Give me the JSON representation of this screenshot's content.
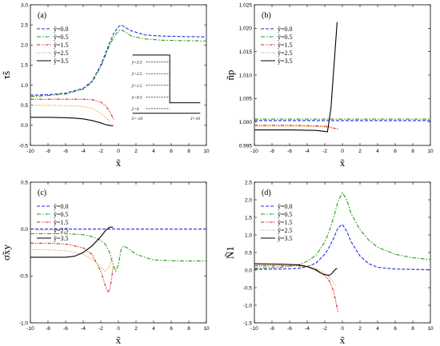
{
  "chart_data": [
    {
      "type": "line",
      "label": "(a)",
      "xlabel": "x̃",
      "ylabel": "τ̃s",
      "xlim": [
        -10,
        10
      ],
      "ylim": [
        -0.5,
        3.0
      ],
      "xticks": [
        -10,
        -8,
        -6,
        -4,
        -2,
        0,
        2,
        4,
        6,
        8,
        10
      ],
      "yticks": [
        -0.5,
        0.0,
        0.5,
        1.0,
        1.5,
        2.0,
        2.5,
        3.0
      ],
      "ytick_labels": [
        "-0.5",
        "0.0",
        "0.5",
        "1.0",
        "1.5",
        "2.0",
        "2.5",
        "3.0"
      ],
      "legend_position": "top-left",
      "series": [
        {
          "name": "ỹ=0.0",
          "color": "#1f2fd8",
          "dash": "dash",
          "x": [
            -10,
            -8,
            -6,
            -4,
            -3,
            -2,
            -1.5,
            -1,
            -0.5,
            0,
            0.3,
            0.7,
            1.5,
            3,
            5,
            7,
            10
          ],
          "y": [
            0.75,
            0.76,
            0.8,
            0.92,
            1.1,
            1.5,
            1.78,
            2.05,
            2.3,
            2.45,
            2.5,
            2.45,
            2.35,
            2.25,
            2.22,
            2.21,
            2.2
          ]
        },
        {
          "name": "ỹ=0.5",
          "color": "#2a9a1a",
          "dash": "dashdot",
          "x": [
            -10,
            -8,
            -6,
            -4,
            -3,
            -2,
            -1.5,
            -1,
            -0.5,
            0,
            0.3,
            0.7,
            1.5,
            3,
            5,
            7,
            10
          ],
          "y": [
            0.72,
            0.74,
            0.78,
            0.9,
            1.07,
            1.45,
            1.72,
            2.0,
            2.2,
            2.35,
            2.38,
            2.33,
            2.22,
            2.15,
            2.12,
            2.11,
            2.1
          ]
        },
        {
          "name": "ỹ=1.5",
          "color": "#d42020",
          "dash": "dashdotdot",
          "x": [
            -10,
            -8,
            -6,
            -4,
            -3,
            -2,
            -1.5,
            -1,
            -0.7,
            -0.5
          ],
          "y": [
            0.65,
            0.65,
            0.65,
            0.65,
            0.64,
            0.58,
            0.5,
            0.35,
            0.22,
            0.15
          ]
        },
        {
          "name": "ỹ=2.5",
          "color": "#e89a30",
          "dash": "dot",
          "x": [
            -10,
            -8,
            -6,
            -4,
            -3,
            -2,
            -1.5,
            -1
          ],
          "y": [
            0.5,
            0.5,
            0.49,
            0.47,
            0.42,
            0.3,
            0.2,
            0.1
          ]
        },
        {
          "name": "ỹ=3.5",
          "color": "#000000",
          "dash": "solid",
          "x": [
            -10,
            -8,
            -6,
            -5,
            -4,
            -3,
            -2,
            -1.5,
            -1,
            -0.6
          ],
          "y": [
            0.2,
            0.2,
            0.19,
            0.18,
            0.16,
            0.12,
            0.06,
            0.02,
            0.0,
            -0.01
          ]
        }
      ],
      "inset": {
        "labels": [
          "ỹ=3.5",
          "ỹ=2.5",
          "ỹ=1.5",
          "ỹ=0.5",
          "ỹ=0"
        ],
        "x_labels": [
          "x̃=-10",
          "x̃=10"
        ]
      }
    },
    {
      "type": "line",
      "label": "(b)",
      "xlabel": "x̃",
      "ylabel": "ñp",
      "xlim": [
        -10,
        10
      ],
      "ylim": [
        0.995,
        1.025
      ],
      "xticks": [
        -10,
        -8,
        -6,
        -4,
        -2,
        0,
        2,
        4,
        6,
        8,
        10
      ],
      "yticks": [
        0.995,
        1.0,
        1.005,
        1.01,
        1.015,
        1.02,
        1.025
      ],
      "ytick_labels": [
        "0.995",
        "1.000",
        "1.005",
        "1.010",
        "1.015",
        "1.020",
        "1.025"
      ],
      "legend_position": "top-left",
      "series": [
        {
          "name": "ỹ=0.0",
          "color": "#1f2fd8",
          "dash": "dash",
          "x": [
            -10,
            -5,
            0,
            5,
            10
          ],
          "y": [
            1.0003,
            1.0003,
            1.0003,
            1.0003,
            1.0003
          ]
        },
        {
          "name": "ỹ=0.5",
          "color": "#2a9a1a",
          "dash": "dashdot",
          "x": [
            -10,
            -5,
            0,
            5,
            10
          ],
          "y": [
            1.0006,
            1.0006,
            1.0006,
            1.0006,
            1.0006
          ]
        },
        {
          "name": "ỹ=1.5",
          "color": "#d42020",
          "dash": "dashdotdot",
          "x": [
            -10,
            -6,
            -3,
            -2,
            -1.5,
            -1,
            -0.5
          ],
          "y": [
            0.9993,
            0.9993,
            0.9992,
            0.9991,
            0.999,
            0.9987,
            0.9985
          ]
        },
        {
          "name": "ỹ=2.5",
          "color": "#e89a30",
          "dash": "dot",
          "x": [
            -10,
            -6,
            -3,
            -2,
            -1.5,
            -1
          ],
          "y": [
            0.9991,
            0.9991,
            0.999,
            0.9989,
            0.9988,
            0.9986
          ]
        },
        {
          "name": "ỹ=3.5",
          "color": "#000000",
          "dash": "solid",
          "x": [
            -10,
            -6,
            -3,
            -2,
            -1.7,
            -1.3,
            -0.6
          ],
          "y": [
            0.9983,
            0.9983,
            0.9982,
            0.998,
            0.9979,
            1.003,
            1.0213
          ]
        }
      ]
    },
    {
      "type": "line",
      "label": "(c)",
      "xlabel": "x̃",
      "ylabel": "σ̃xy",
      "xlim": [
        -10,
        10
      ],
      "ylim": [
        -1.0,
        0.5
      ],
      "xticks": [
        -10,
        -8,
        -6,
        -4,
        -2,
        0,
        2,
        4,
        6,
        8,
        10
      ],
      "yticks": [
        -1.0,
        -0.5,
        0.0,
        0.5
      ],
      "ytick_labels": [
        "-1.0",
        "-0.5",
        "0.0",
        "0.5"
      ],
      "legend_position": "top-left",
      "series": [
        {
          "name": "ỹ=0.0",
          "color": "#1f2fd8",
          "dash": "dash",
          "x": [
            -10,
            -5,
            0,
            5,
            10
          ],
          "y": [
            0.0,
            0.0,
            0.0,
            0.0,
            0.0
          ]
        },
        {
          "name": "ỹ=0.5",
          "color": "#2a9a1a",
          "dash": "dashdot",
          "x": [
            -10,
            -6,
            -4,
            -3,
            -2,
            -1.5,
            -1,
            -0.6,
            -0.3,
            0,
            0.3,
            0.6,
            1,
            2,
            4,
            7,
            10
          ],
          "y": [
            -0.05,
            -0.05,
            -0.06,
            -0.08,
            -0.12,
            -0.16,
            -0.25,
            -0.38,
            -0.45,
            -0.38,
            -0.22,
            -0.18,
            -0.2,
            -0.27,
            -0.33,
            -0.34,
            -0.34
          ]
        },
        {
          "name": "ỹ=1.5",
          "color": "#d42020",
          "dash": "dashdotdot",
          "x": [
            -10,
            -8,
            -6,
            -4,
            -3,
            -2,
            -1.5,
            -1.2,
            -1,
            -0.8,
            -0.6
          ],
          "y": [
            -0.15,
            -0.15,
            -0.16,
            -0.2,
            -0.27,
            -0.45,
            -0.6,
            -0.67,
            -0.65,
            -0.55,
            -0.4
          ]
        },
        {
          "name": "ỹ=2.5",
          "color": "#e89a30",
          "dash": "dot",
          "x": [
            -10,
            -8,
            -6,
            -4,
            -3,
            -2,
            -1.5,
            -1,
            -0.7
          ],
          "y": [
            -0.22,
            -0.22,
            -0.23,
            -0.27,
            -0.32,
            -0.4,
            -0.45,
            -0.4,
            -0.3
          ]
        },
        {
          "name": "ỹ=3.5",
          "color": "#000000",
          "dash": "solid",
          "x": [
            -10,
            -8,
            -6,
            -5,
            -4,
            -3,
            -2,
            -1.5,
            -1,
            -0.6
          ],
          "y": [
            -0.3,
            -0.3,
            -0.3,
            -0.29,
            -0.25,
            -0.18,
            -0.08,
            -0.02,
            0.02,
            0.02
          ]
        }
      ]
    },
    {
      "type": "line",
      "label": "(d)",
      "xlabel": "x̃",
      "ylabel": "Ñ1",
      "xlim": [
        -10,
        10
      ],
      "ylim": [
        -1.5,
        2.5
      ],
      "xticks": [
        -10,
        -8,
        -6,
        -4,
        -2,
        0,
        2,
        4,
        6,
        8,
        10
      ],
      "yticks": [
        -1.5,
        -1.0,
        -0.5,
        0.0,
        0.5,
        1.0,
        1.5,
        2.0,
        2.5
      ],
      "ytick_labels": [
        "-1.5",
        "-1.0",
        "-0.5",
        "0.0",
        "0.5",
        "1.0",
        "1.5",
        "2.0",
        "2.5"
      ],
      "legend_position": "top-left",
      "series": [
        {
          "name": "ỹ=0.0",
          "color": "#1f2fd8",
          "dash": "dash",
          "x": [
            -10,
            -7,
            -5,
            -4,
            -3,
            -2,
            -1.5,
            -1,
            -0.5,
            0,
            0.5,
            1,
            2,
            3,
            4,
            6,
            8,
            10
          ],
          "y": [
            0.02,
            0.03,
            0.05,
            0.1,
            0.2,
            0.45,
            0.65,
            0.9,
            1.2,
            1.3,
            1.1,
            0.8,
            0.4,
            0.18,
            0.08,
            0.03,
            0.02,
            0.01
          ]
        },
        {
          "name": "ỹ=0.5",
          "color": "#2a9a1a",
          "dash": "dashdot",
          "x": [
            -10,
            -7,
            -5,
            -4,
            -3,
            -2,
            -1.5,
            -1,
            -0.5,
            0,
            0.5,
            1,
            2,
            3,
            4,
            6,
            8,
            10
          ],
          "y": [
            0.05,
            0.08,
            0.15,
            0.25,
            0.42,
            0.8,
            1.1,
            1.5,
            1.95,
            2.2,
            2.0,
            1.6,
            1.15,
            0.85,
            0.65,
            0.45,
            0.35,
            0.3
          ]
        },
        {
          "name": "ỹ=1.5",
          "color": "#d42020",
          "dash": "dashdotdot",
          "x": [
            -10,
            -7,
            -5,
            -4,
            -3,
            -2,
            -1.5,
            -1,
            -0.7,
            -0.5
          ],
          "y": [
            0.12,
            0.12,
            0.12,
            0.1,
            0.02,
            -0.15,
            -0.3,
            -0.6,
            -0.95,
            -1.2
          ]
        },
        {
          "name": "ỹ=2.5",
          "color": "#e89a30",
          "dash": "dot",
          "x": [
            -10,
            -7,
            -5,
            -4,
            -3,
            -2,
            -1.5,
            -1,
            -0.7
          ],
          "y": [
            0.15,
            0.15,
            0.14,
            0.12,
            0.05,
            -0.08,
            -0.2,
            -0.35,
            -0.45
          ]
        },
        {
          "name": "ỹ=3.5",
          "color": "#000000",
          "dash": "solid",
          "x": [
            -10,
            -7,
            -5,
            -4,
            -3,
            -2.5,
            -2,
            -1.5,
            -1.2,
            -1,
            -0.8,
            -0.6
          ],
          "y": [
            0.18,
            0.17,
            0.15,
            0.1,
            0.0,
            -0.08,
            -0.13,
            -0.15,
            -0.1,
            -0.03,
            0.02,
            0.05
          ]
        }
      ]
    }
  ]
}
